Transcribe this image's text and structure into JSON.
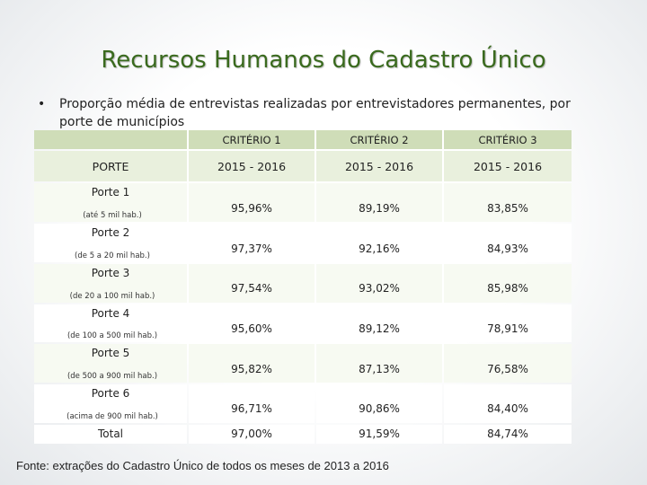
{
  "title": "Recursos Humanos do Cadastro Único",
  "bullet": {
    "symbol": "•",
    "text": "Proporção média de entrevistas realizadas por entrevistadores permanentes, por porte de municípios"
  },
  "table": {
    "criteria": [
      "CRITÉRIO 1",
      "CRITÉRIO 2",
      "CRITÉRIO 3"
    ],
    "porte_header": "PORTE",
    "periods": [
      "2015 - 2016",
      "2015 - 2016",
      "2015 - 2016"
    ],
    "rows": [
      {
        "name": "Porte 1",
        "desc": "(até 5 mil hab.)",
        "values": [
          "95,96%",
          "89,19%",
          "83,85%"
        ]
      },
      {
        "name": "Porte 2",
        "desc": "(de 5 a 20 mil hab.)",
        "values": [
          "97,37%",
          "92,16%",
          "84,93%"
        ]
      },
      {
        "name": "Porte 3",
        "desc": "(de 20 a 100 mil hab.)",
        "values": [
          "97,54%",
          "93,02%",
          "85,98%"
        ]
      },
      {
        "name": "Porte 4",
        "desc": "(de 100 a 500 mil hab.)",
        "values": [
          "95,60%",
          "89,12%",
          "78,91%"
        ]
      },
      {
        "name": "Porte 5",
        "desc": "(de 500 a 900 mil hab.)",
        "values": [
          "95,82%",
          "87,13%",
          "76,58%"
        ]
      },
      {
        "name": "Porte 6",
        "desc": "(acima de 900 mil hab.)",
        "values": [
          "96,71%",
          "90,86%",
          "84,40%"
        ]
      }
    ],
    "total": {
      "name": "Total",
      "values": [
        "97,00%",
        "91,59%",
        "84,74%"
      ]
    }
  },
  "source": "Fonte: extrações do Cadastro Único de todos os meses de 2013 a 2016"
}
